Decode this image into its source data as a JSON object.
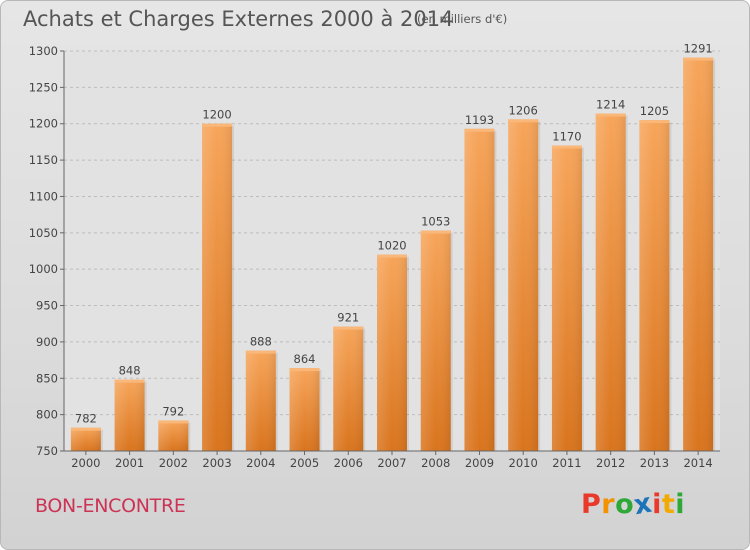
{
  "header": {
    "title": "Achats et Charges Externes 2000 à 2014",
    "subtitle": "(en milliers d'€)"
  },
  "footer": {
    "commune": "BON-ENCONTRE",
    "logo_text": "Proxiti",
    "logo_colors": [
      "#e8392a",
      "#f39200",
      "#2ea836",
      "#1d74b9",
      "#e8392a",
      "#f2a900",
      "#2ea836"
    ]
  },
  "chart_data": {
    "type": "bar",
    "title": "Achats et Charges Externes 2000 à 2014",
    "subtitle": "(en milliers d'€)",
    "categories": [
      "2000",
      "2001",
      "2002",
      "2003",
      "2004",
      "2005",
      "2006",
      "2007",
      "2008",
      "2009",
      "2010",
      "2011",
      "2012",
      "2013",
      "2014"
    ],
    "values": [
      782,
      848,
      792,
      1200,
      888,
      864,
      921,
      1020,
      1053,
      1193,
      1206,
      1170,
      1214,
      1205,
      1291
    ],
    "ylim": [
      750,
      1300
    ],
    "yticks": [
      750,
      800,
      850,
      900,
      950,
      1000,
      1050,
      1100,
      1150,
      1200,
      1250,
      1300
    ],
    "grid": "horizontal-dashed",
    "bar_color": "#f0913a",
    "bar_color_dark": "#d46f16",
    "xlabel": "",
    "ylabel": ""
  }
}
